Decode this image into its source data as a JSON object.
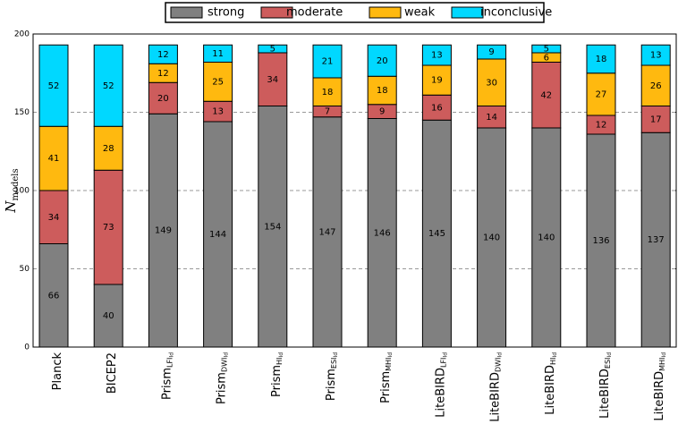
{
  "chart_data": {
    "type": "stacked_bar",
    "ylabel": "N",
    "ylabel_subscript": "models",
    "categories": [
      "Planck",
      "BICEP2",
      "Prism",
      "Prism",
      "Prism",
      "Prism",
      "Prism",
      "LiteBIRD",
      "LiteBIRD",
      "LiteBIRD",
      "LiteBIRD",
      "LiteBIRD"
    ],
    "category_subscripts": [
      null,
      null,
      [
        "LFI",
        "Id"
      ],
      [
        "DWI",
        "Id"
      ],
      [
        "HI",
        "Id"
      ],
      [
        "ESI",
        "Id"
      ],
      [
        "MHI",
        "Id"
      ],
      [
        "LFI",
        "Id"
      ],
      [
        "DWI",
        "Id"
      ],
      [
        "HI",
        "Id"
      ],
      [
        "ESI",
        "Id"
      ],
      [
        "MHI",
        "Id"
      ]
    ],
    "series": [
      {
        "name": "strong",
        "color": "#808080",
        "values": [
          66,
          40,
          149,
          144,
          154,
          147,
          146,
          145,
          140,
          140,
          136,
          137
        ]
      },
      {
        "name": "moderate",
        "color": "#cd5c5c",
        "values": [
          34,
          73,
          20,
          13,
          34,
          7,
          9,
          16,
          14,
          42,
          12,
          17
        ]
      },
      {
        "name": "weak",
        "color": "#ffb90f",
        "values": [
          41,
          28,
          12,
          25,
          0,
          18,
          18,
          19,
          30,
          6,
          27,
          26
        ],
        "value_labels": [
          "41",
          "28",
          "12",
          "25",
          null,
          "18",
          "18",
          "19",
          "30",
          "6",
          "27",
          "26"
        ]
      },
      {
        "name": "inconclusive",
        "color": "#00d8ff",
        "values": [
          52,
          52,
          12,
          11,
          5,
          21,
          20,
          13,
          9,
          5,
          18,
          13
        ]
      }
    ],
    "ylim": [
      0,
      200
    ],
    "yticks": [
      0,
      50,
      100,
      150,
      200
    ],
    "grid": true,
    "legend": "top"
  }
}
